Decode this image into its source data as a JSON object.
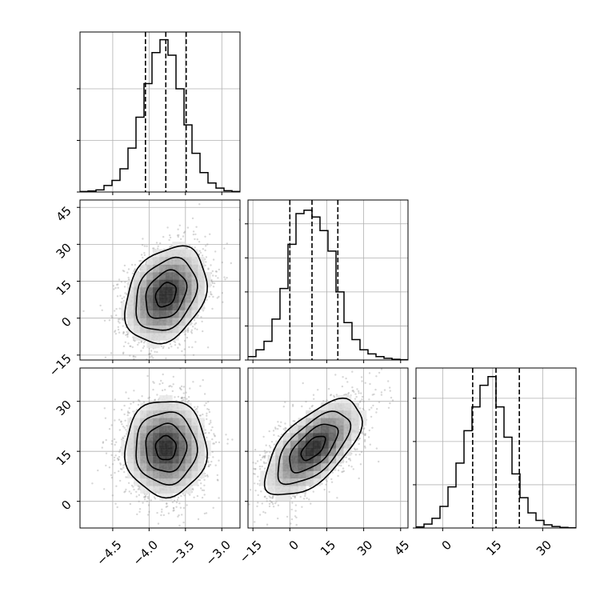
{
  "chart_data": {
    "type": "corner",
    "description_free": true,
    "grid": true,
    "parameters": [
      {
        "range": [
          -4.95,
          -2.75
        ],
        "ticks": [
          -4.5,
          -4.0,
          -3.5,
          -3.0
        ],
        "tick_labels": [
          "−4.5",
          "−4.0",
          "−3.5",
          "−3.0"
        ],
        "quantiles": [
          -4.05,
          -3.77,
          -3.49
        ],
        "mean": -3.77,
        "sigma": 0.28
      },
      {
        "range": [
          -17,
          48
        ],
        "ticks": [
          -15,
          0,
          15,
          30,
          45
        ],
        "tick_labels": [
          "−15",
          "0",
          "15",
          "30",
          "45"
        ],
        "quantiles": [
          0,
          9,
          19.5
        ],
        "mean": 9.5,
        "sigma": 9.8
      },
      {
        "range": [
          -8,
          40
        ],
        "ticks": [
          0,
          15,
          30
        ],
        "tick_labels": [
          "0",
          "15",
          "30"
        ],
        "quantiles": [
          9,
          16,
          23
        ],
        "mean": 16,
        "sigma": 7.2
      }
    ],
    "histograms": [
      {
        "param": 0,
        "bin_edges": [
          -4.95,
          -4.84,
          -4.73,
          -4.62,
          -4.51,
          -4.4,
          -4.29,
          -4.18,
          -4.07,
          -3.96,
          -3.85,
          -3.74,
          -3.63,
          -3.52,
          -3.41,
          -3.3,
          -3.19,
          -3.08,
          -2.97,
          -2.86,
          -2.75
        ],
        "counts": [
          2,
          4,
          8,
          25,
          45,
          90,
          170,
          290,
          420,
          540,
          590,
          530,
          400,
          260,
          150,
          75,
          35,
          15,
          5,
          2
        ],
        "ylim": [
          0,
          620
        ],
        "ticks": [
          0,
          200,
          400
        ]
      },
      {
        "param": 1,
        "bin_edges": [
          -17,
          -13.75,
          -10.5,
          -7.25,
          -4,
          -0.75,
          2.5,
          5.75,
          9,
          12.25,
          15.5,
          18.75,
          22,
          25.25,
          28.5,
          31.75,
          35,
          38.25,
          41.5,
          44.75,
          48
        ],
        "counts": [
          10,
          30,
          55,
          120,
          210,
          340,
          430,
          440,
          420,
          380,
          320,
          200,
          110,
          60,
          30,
          18,
          10,
          5,
          2,
          1
        ],
        "ylim": [
          0,
          470
        ],
        "ticks": [
          0,
          100,
          200,
          300,
          400
        ]
      },
      {
        "param": 2,
        "bin_edges": [
          -8,
          -5.6,
          -3.2,
          -0.8,
          1.6,
          4,
          6.4,
          8.8,
          11.2,
          13.6,
          16,
          18.4,
          20.8,
          23.2,
          25.6,
          28,
          30.4,
          32.8,
          35.2,
          37.6,
          40
        ],
        "counts": [
          5,
          18,
          45,
          100,
          190,
          300,
          450,
          560,
          660,
          700,
          560,
          420,
          250,
          140,
          70,
          35,
          15,
          7,
          3,
          1
        ],
        "ylim": [
          0,
          740
        ],
        "ticks": [
          0,
          200,
          400,
          600
        ]
      }
    ],
    "correlations": {
      "1_0": 0.28,
      "2_0": 0.0,
      "2_1": 0.62
    }
  }
}
